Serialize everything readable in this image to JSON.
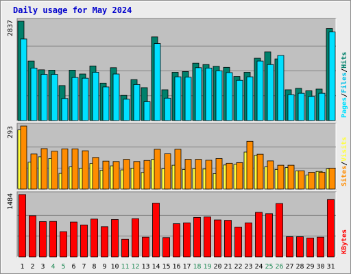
{
  "colors": {
    "frame_bg": "#ececec",
    "plot_bg": "#c0c0c0",
    "grid": "#808080",
    "title": "#0000cc",
    "hits": "#00806b",
    "files": "#00c0e8",
    "pages": "#00e0ff",
    "visits": "#ffff40",
    "sites": "#ff8c00",
    "kbytes": "#ff0000",
    "weekday_label": "#000000",
    "weekend_label": "#228b57"
  },
  "chart_data": {
    "type": "bar",
    "title": "Daily usage for May 2024",
    "x": [
      "1",
      "2",
      "3",
      "4",
      "5",
      "6",
      "7",
      "8",
      "9",
      "10",
      "11",
      "12",
      "13",
      "14",
      "15",
      "16",
      "17",
      "18",
      "19",
      "20",
      "21",
      "22",
      "23",
      "24",
      "25",
      "26",
      "27",
      "28",
      "29",
      "30",
      "31"
    ],
    "weekend_days": [
      "4",
      "5",
      "11",
      "12",
      "18",
      "19",
      "25",
      "26"
    ],
    "panels": [
      {
        "id": "top",
        "ymax_label": "2837",
        "ylim": [
          0,
          2837
        ],
        "series": [
          {
            "name": "Hits",
            "color": "#00806b",
            "values": [
              2837,
              1700,
              1450,
              1440,
              1000,
              1440,
              1330,
              1560,
              1070,
              1510,
              720,
              1170,
              940,
              2390,
              880,
              1380,
              1400,
              1640,
              1600,
              1550,
              1520,
              1260,
              1380,
              1780,
              1960,
              1760,
              880,
              920,
              850,
              900,
              2630
            ]
          },
          {
            "name": "Files",
            "color": "#00e0ff",
            "values": [
              2330,
              1500,
              1320,
              1320,
              630,
              1230,
              1210,
              1380,
              960,
              1330,
              610,
              1030,
              540,
              2200,
              640,
              1250,
              1240,
              1510,
              1500,
              1420,
              1370,
              1150,
              1250,
              1700,
              1600,
              1860,
              740,
              780,
              690,
              780,
              2530
            ]
          }
        ],
        "legend": [
          "Pages",
          "/",
          "Files",
          "/",
          "Hits"
        ]
      },
      {
        "id": "middle",
        "ymax_label": "293",
        "ylim": [
          0,
          293
        ],
        "series": [
          {
            "name": "Visits",
            "color": "#ffff40",
            "values": [
              275,
              125,
              150,
              142,
              73,
              103,
              97,
              119,
              87,
              108,
              89,
              97,
              77,
              138,
              94,
              111,
              91,
              95,
              93,
              72,
              112,
              115,
              172,
              157,
              103,
              91,
              100,
              84,
              65,
              82,
              94
            ]
          },
          {
            "name": "Sites",
            "color": "#ff8c00",
            "values": [
              293,
              163,
              188,
              176,
              187,
              187,
              178,
              147,
              130,
              128,
              138,
              128,
              133,
              185,
              164,
              185,
              138,
              138,
              134,
              142,
              120,
              123,
              222,
              162,
              131,
              111,
              111,
              85,
              78,
              78,
              97
            ]
          }
        ],
        "legend": [
          "Sites",
          "/",
          "Visits"
        ]
      },
      {
        "id": "bottom",
        "ymax_label": "1484",
        "ylim": [
          0,
          1484
        ],
        "series": [
          {
            "name": "KBytes",
            "color": "#ff0000",
            "values": [
              1484,
              980,
              840,
              845,
              600,
              830,
              760,
              900,
              720,
              890,
              420,
              910,
              470,
              1280,
              460,
              790,
              810,
              940,
              950,
              880,
              870,
              710,
              810,
              1060,
              1030,
              1270,
              480,
              480,
              450,
              470,
              1365
            ]
          }
        ],
        "legend": [
          "KBytes"
        ]
      }
    ]
  }
}
